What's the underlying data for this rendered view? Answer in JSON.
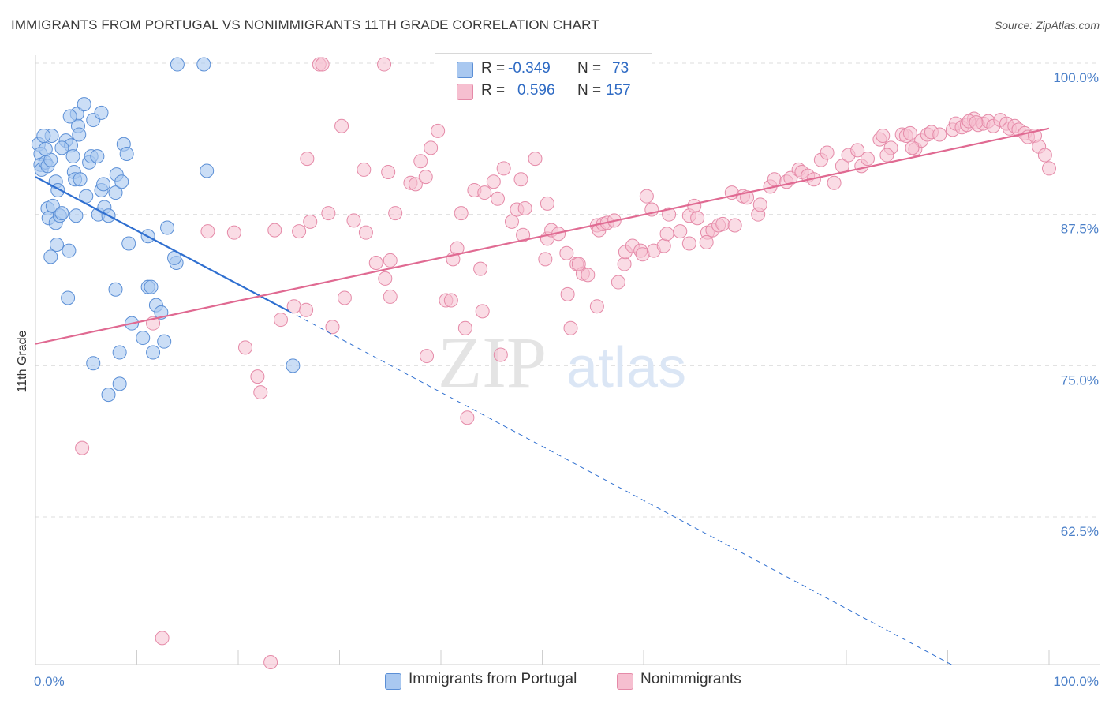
{
  "title": "IMMIGRANTS FROM PORTUGAL VS NONIMMIGRANTS 11TH GRADE CORRELATION CHART",
  "source": "Source: ZipAtlas.com",
  "watermark": {
    "zip": "ZIP",
    "atlas": "atlas"
  },
  "legend": {
    "r_label": "R =",
    "n_label": "N =",
    "rows": [
      {
        "r": "-0.349",
        "n": "73"
      },
      {
        "r": "0.596",
        "n": "157"
      }
    ]
  },
  "bottom_legend": [
    "Immigrants from Portugal",
    "Nonimmigrants"
  ],
  "colors": {
    "blue_fill": "#a9c8f0",
    "blue_stroke": "#5b8fd6",
    "blue_line": "#2f6fd0",
    "pink_fill": "#f6bfd0",
    "pink_stroke": "#e58aa8",
    "pink_line": "#e06a92",
    "tick_text": "#4a7fc8"
  },
  "chart_data": {
    "type": "scatter",
    "title": "IMMIGRANTS FROM PORTUGAL VS NONIMMIGRANTS 11TH GRADE CORRELATION CHART",
    "xlabel": "",
    "ylabel": "11th Grade",
    "xlim": [
      0,
      100
    ],
    "ylim": [
      50.5,
      101
    ],
    "x_tick_labels": [
      "0.0%",
      "100.0%"
    ],
    "y_ticks": [
      62.5,
      75.0,
      87.5,
      100.0
    ],
    "y_tick_labels": [
      "62.5%",
      "75.0%",
      "87.5%",
      "100.0%"
    ],
    "grid": true,
    "legend_position": "top-center",
    "series": [
      {
        "name": "Immigrants from Portugal",
        "r": -0.349,
        "n": 73,
        "trend": {
          "x0": 0,
          "y0": 90.6,
          "x1": 25,
          "y1": 79.5,
          "dashed_to_x": 100,
          "dashed_to_y": 46.0
        },
        "points": [
          [
            0.3,
            93.3
          ],
          [
            0.5,
            92.5
          ],
          [
            0.5,
            91.6
          ],
          [
            0.6,
            91.2
          ],
          [
            1.0,
            91.8
          ],
          [
            1.2,
            91.5
          ],
          [
            1.5,
            92.0
          ],
          [
            1.6,
            94.0
          ],
          [
            2.0,
            90.2
          ],
          [
            2.2,
            89.5
          ],
          [
            1.2,
            88.0
          ],
          [
            1.3,
            87.2
          ],
          [
            1.7,
            88.2
          ],
          [
            2.0,
            86.8
          ],
          [
            2.4,
            87.4
          ],
          [
            2.6,
            87.6
          ],
          [
            3.0,
            93.6
          ],
          [
            3.5,
            93.2
          ],
          [
            3.7,
            92.3
          ],
          [
            3.8,
            91.0
          ],
          [
            3.9,
            90.4
          ],
          [
            4.1,
            95.8
          ],
          [
            4.2,
            94.8
          ],
          [
            4.3,
            94.1
          ],
          [
            4.8,
            96.6
          ],
          [
            4.0,
            87.4
          ],
          [
            4.4,
            90.4
          ],
          [
            5.0,
            89.0
          ],
          [
            5.3,
            91.8
          ],
          [
            5.5,
            92.3
          ],
          [
            5.7,
            95.3
          ],
          [
            6.1,
            92.3
          ],
          [
            6.2,
            87.5
          ],
          [
            6.5,
            95.9
          ],
          [
            6.5,
            89.5
          ],
          [
            6.7,
            90.0
          ],
          [
            6.8,
            88.1
          ],
          [
            7.2,
            87.4
          ],
          [
            7.9,
            89.3
          ],
          [
            8.0,
            90.8
          ],
          [
            8.5,
            90.2
          ],
          [
            8.7,
            93.3
          ],
          [
            9.0,
            92.5
          ],
          [
            9.2,
            85.1
          ],
          [
            1.5,
            84.0
          ],
          [
            2.1,
            85.0
          ],
          [
            3.3,
            84.5
          ],
          [
            3.2,
            80.6
          ],
          [
            7.9,
            81.3
          ],
          [
            9.5,
            78.5
          ],
          [
            10.6,
            77.3
          ],
          [
            11.1,
            81.5
          ],
          [
            11.4,
            81.5
          ],
          [
            11.9,
            80.0
          ],
          [
            12.4,
            79.4
          ],
          [
            11.6,
            76.1
          ],
          [
            12.7,
            77.0
          ],
          [
            8.3,
            76.1
          ],
          [
            5.7,
            75.2
          ],
          [
            8.3,
            73.5
          ],
          [
            7.2,
            72.6
          ],
          [
            11.1,
            85.7
          ],
          [
            13.0,
            86.4
          ],
          [
            13.9,
            83.5
          ],
          [
            13.7,
            83.9
          ],
          [
            14.0,
            99.9
          ],
          [
            16.6,
            99.9
          ],
          [
            16.9,
            91.1
          ],
          [
            25.4,
            75.0
          ],
          [
            3.4,
            95.6
          ],
          [
            1.0,
            92.9
          ],
          [
            2.6,
            93.0
          ],
          [
            0.8,
            94.0
          ]
        ]
      },
      {
        "name": "Nonimmigrants",
        "r": 0.596,
        "n": 157,
        "trend": {
          "x0": 0,
          "y0": 76.8,
          "x1": 100,
          "y1": 94.6
        },
        "points": [
          [
            28.0,
            99.9
          ],
          [
            28.3,
            99.9
          ],
          [
            34.4,
            99.9
          ],
          [
            11.6,
            78.5
          ],
          [
            4.6,
            68.2
          ],
          [
            12.5,
            52.5
          ],
          [
            23.2,
            50.5
          ],
          [
            20.7,
            76.5
          ],
          [
            22.2,
            72.8
          ],
          [
            21.9,
            74.1
          ],
          [
            24.2,
            78.8
          ],
          [
            25.5,
            79.9
          ],
          [
            26.7,
            79.6
          ],
          [
            29.3,
            78.2
          ],
          [
            30.5,
            80.6
          ],
          [
            27.1,
            86.9
          ],
          [
            26.0,
            86.1
          ],
          [
            26.8,
            92.1
          ],
          [
            28.9,
            87.6
          ],
          [
            23.6,
            86.2
          ],
          [
            19.6,
            86.0
          ],
          [
            17.0,
            86.1
          ],
          [
            31.4,
            87.0
          ],
          [
            32.6,
            86.0
          ],
          [
            30.2,
            94.8
          ],
          [
            32.4,
            91.2
          ],
          [
            33.6,
            83.5
          ],
          [
            34.5,
            82.2
          ],
          [
            35.0,
            83.7
          ],
          [
            35.5,
            87.6
          ],
          [
            35.0,
            80.7
          ],
          [
            34.8,
            91.0
          ],
          [
            37.0,
            90.1
          ],
          [
            37.5,
            90.0
          ],
          [
            38.5,
            90.6
          ],
          [
            38.0,
            91.9
          ],
          [
            39.0,
            93.0
          ],
          [
            39.7,
            94.4
          ],
          [
            38.6,
            75.8
          ],
          [
            40.5,
            80.4
          ],
          [
            41.0,
            80.4
          ],
          [
            41.2,
            83.8
          ],
          [
            41.6,
            84.7
          ],
          [
            42.0,
            87.6
          ],
          [
            42.4,
            78.1
          ],
          [
            42.6,
            70.7
          ],
          [
            43.3,
            89.5
          ],
          [
            43.9,
            83.0
          ],
          [
            44.1,
            79.5
          ],
          [
            44.3,
            89.3
          ],
          [
            45.2,
            90.2
          ],
          [
            45.6,
            88.8
          ],
          [
            45.9,
            75.9
          ],
          [
            46.2,
            91.3
          ],
          [
            47.0,
            86.9
          ],
          [
            47.5,
            87.9
          ],
          [
            47.9,
            90.4
          ],
          [
            48.1,
            85.8
          ],
          [
            48.3,
            88.0
          ],
          [
            49.3,
            92.1
          ],
          [
            50.3,
            83.8
          ],
          [
            50.5,
            85.5
          ],
          [
            50.5,
            88.4
          ],
          [
            50.9,
            86.2
          ],
          [
            51.6,
            85.9
          ],
          [
            52.4,
            84.3
          ],
          [
            52.5,
            80.9
          ],
          [
            52.8,
            78.1
          ],
          [
            53.4,
            83.4
          ],
          [
            54.0,
            82.6
          ],
          [
            53.6,
            83.4
          ],
          [
            54.5,
            82.5
          ],
          [
            55.4,
            86.6
          ],
          [
            55.6,
            86.2
          ],
          [
            56.0,
            86.7
          ],
          [
            56.4,
            86.8
          ],
          [
            55.4,
            79.9
          ],
          [
            57.1,
            87.0
          ],
          [
            57.5,
            81.9
          ],
          [
            58.1,
            83.4
          ],
          [
            58.2,
            84.4
          ],
          [
            58.9,
            84.9
          ],
          [
            59.7,
            84.5
          ],
          [
            59.9,
            84.2
          ],
          [
            60.3,
            89.0
          ],
          [
            60.8,
            87.9
          ],
          [
            61.0,
            84.5
          ],
          [
            62.0,
            84.9
          ],
          [
            62.5,
            87.5
          ],
          [
            62.3,
            85.9
          ],
          [
            63.6,
            86.1
          ],
          [
            64.5,
            85.1
          ],
          [
            64.5,
            87.4
          ],
          [
            65.0,
            88.2
          ],
          [
            65.3,
            87.2
          ],
          [
            66.3,
            86.0
          ],
          [
            66.8,
            86.2
          ],
          [
            66.2,
            85.2
          ],
          [
            67.4,
            86.6
          ],
          [
            67.8,
            86.7
          ],
          [
            68.7,
            89.3
          ],
          [
            69.0,
            86.6
          ],
          [
            69.8,
            89.0
          ],
          [
            70.2,
            88.9
          ],
          [
            71.3,
            87.5
          ],
          [
            71.5,
            88.3
          ],
          [
            72.5,
            89.8
          ],
          [
            72.9,
            90.4
          ],
          [
            74.1,
            90.2
          ],
          [
            74.5,
            90.5
          ],
          [
            75.3,
            91.2
          ],
          [
            75.6,
            91.0
          ],
          [
            76.2,
            90.7
          ],
          [
            76.8,
            90.4
          ],
          [
            77.5,
            92.0
          ],
          [
            78.1,
            92.6
          ],
          [
            78.8,
            90.1
          ],
          [
            79.6,
            91.5
          ],
          [
            80.2,
            92.4
          ],
          [
            81.1,
            92.8
          ],
          [
            81.5,
            91.5
          ],
          [
            82.1,
            92.1
          ],
          [
            83.3,
            93.7
          ],
          [
            83.6,
            94.0
          ],
          [
            84.4,
            93.0
          ],
          [
            85.5,
            94.1
          ],
          [
            85.9,
            94.0
          ],
          [
            86.3,
            94.2
          ],
          [
            86.8,
            92.9
          ],
          [
            87.4,
            93.6
          ],
          [
            88.0,
            94.1
          ],
          [
            88.4,
            94.3
          ],
          [
            89.2,
            94.1
          ],
          [
            90.5,
            94.5
          ],
          [
            90.8,
            95.0
          ],
          [
            91.4,
            94.7
          ],
          [
            91.9,
            94.9
          ],
          [
            92.6,
            95.4
          ],
          [
            93.0,
            94.9
          ],
          [
            93.5,
            95.0
          ],
          [
            94.0,
            95.2
          ],
          [
            94.5,
            94.8
          ],
          [
            95.2,
            95.3
          ],
          [
            95.8,
            95.0
          ],
          [
            96.1,
            94.6
          ],
          [
            96.6,
            94.8
          ],
          [
            97.0,
            94.5
          ],
          [
            97.6,
            94.2
          ],
          [
            97.9,
            93.9
          ],
          [
            98.6,
            94.0
          ],
          [
            99.0,
            93.1
          ],
          [
            99.6,
            92.4
          ],
          [
            100.0,
            91.3
          ],
          [
            92.1,
            95.2
          ],
          [
            92.8,
            95.1
          ],
          [
            86.5,
            93.0
          ],
          [
            84.0,
            92.4
          ]
        ]
      }
    ]
  }
}
